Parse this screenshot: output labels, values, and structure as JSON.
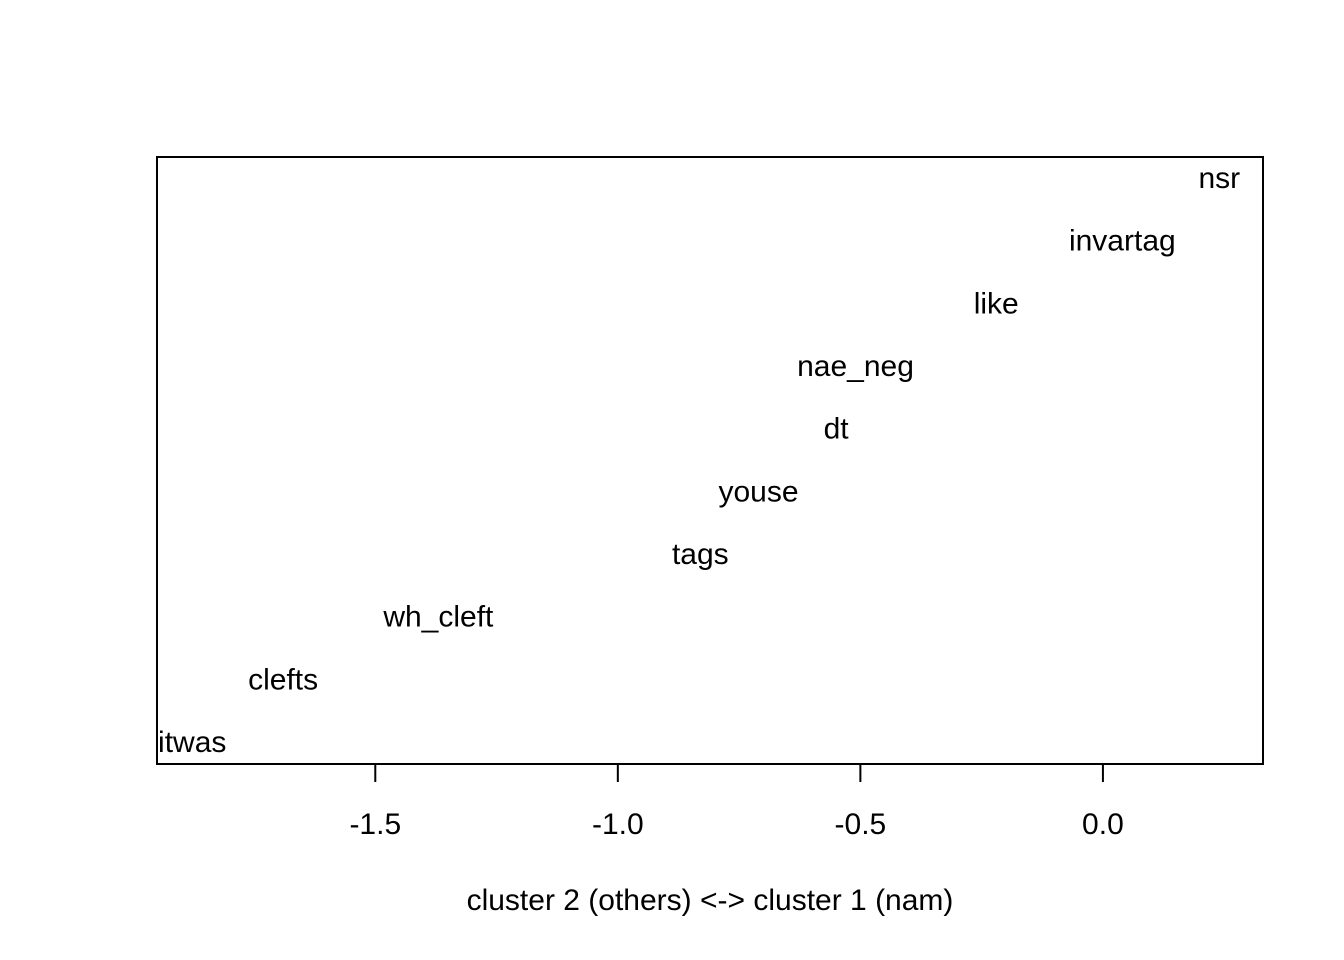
{
  "chart_data": {
    "type": "scatter",
    "title": "",
    "xlabel": "cluster 2 (others) <-> cluster 1 (nam)",
    "ylabel": "",
    "xlim": [
      -1.95,
      0.33
    ],
    "xticks": [
      -1.5,
      -1.0,
      -0.5,
      0.0
    ],
    "xtick_labels": [
      "-1.5",
      "-1.0",
      "-0.5",
      "0.0"
    ],
    "y_axis_shown": false,
    "grid": false,
    "points": [
      {
        "label": "nsr",
        "x": 0.24,
        "rank": 10
      },
      {
        "label": "invartag",
        "x": 0.04,
        "rank": 9
      },
      {
        "label": "like",
        "x": -0.22,
        "rank": 8
      },
      {
        "label": "nae_neg",
        "x": -0.51,
        "rank": 7
      },
      {
        "label": "dt",
        "x": -0.55,
        "rank": 6
      },
      {
        "label": "youse",
        "x": -0.71,
        "rank": 5
      },
      {
        "label": "tags",
        "x": -0.83,
        "rank": 4
      },
      {
        "label": "wh_cleft",
        "x": -1.37,
        "rank": 3
      },
      {
        "label": "clefts",
        "x": -1.69,
        "rank": 2
      },
      {
        "label": "soitwas",
        "x": -1.91,
        "rank": 1
      }
    ]
  }
}
